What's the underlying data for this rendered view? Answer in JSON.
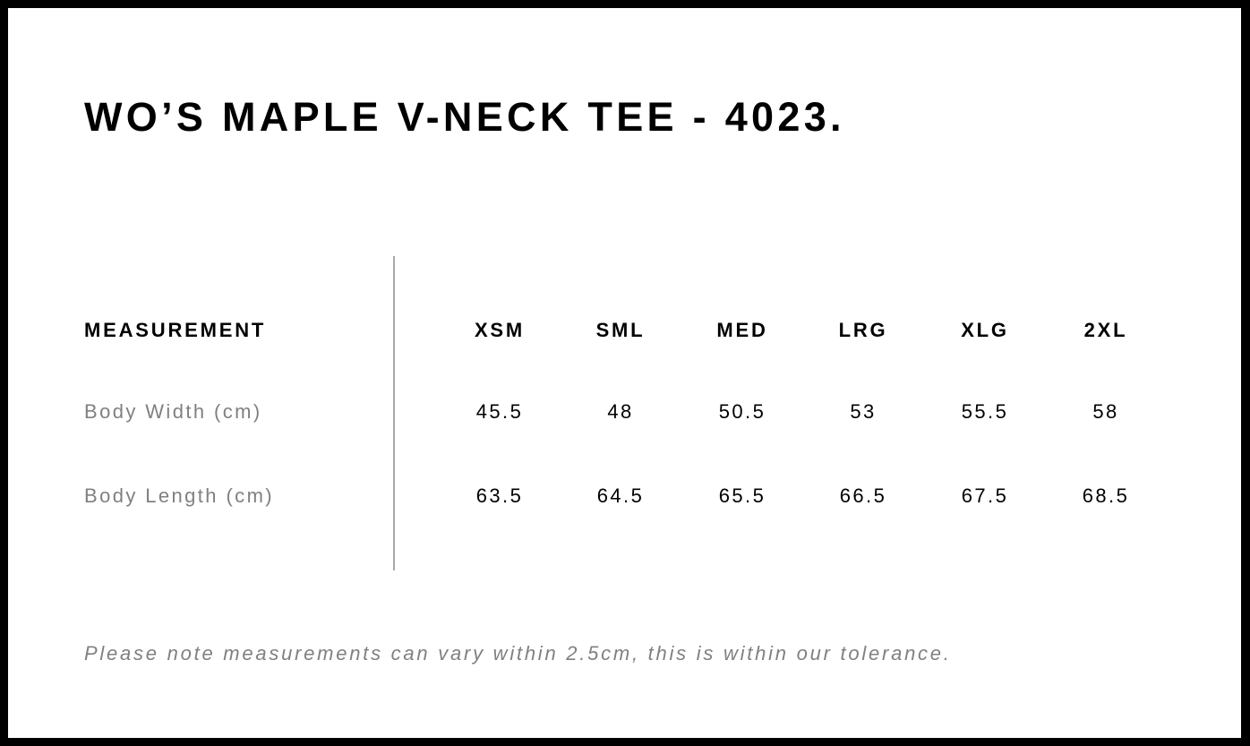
{
  "title": "WO’S MAPLE V-NECK TEE - 4023.",
  "table": {
    "header_label": "MEASUREMENT",
    "sizes": [
      "XSM",
      "SML",
      "MED",
      "LRG",
      "XLG",
      "2XL"
    ],
    "rows": [
      {
        "label": "Body Width (cm)",
        "values": [
          "45.5",
          "48",
          "50.5",
          "53",
          "55.5",
          "58"
        ]
      },
      {
        "label": "Body Length (cm)",
        "values": [
          "63.5",
          "64.5",
          "65.5",
          "66.5",
          "67.5",
          "68.5"
        ]
      }
    ]
  },
  "note": "Please note measurements can vary within 2.5cm, this is within our tolerance.",
  "colors": {
    "frame": "#000000",
    "label_gray": "#808080",
    "divider": "#a8a8a8"
  }
}
